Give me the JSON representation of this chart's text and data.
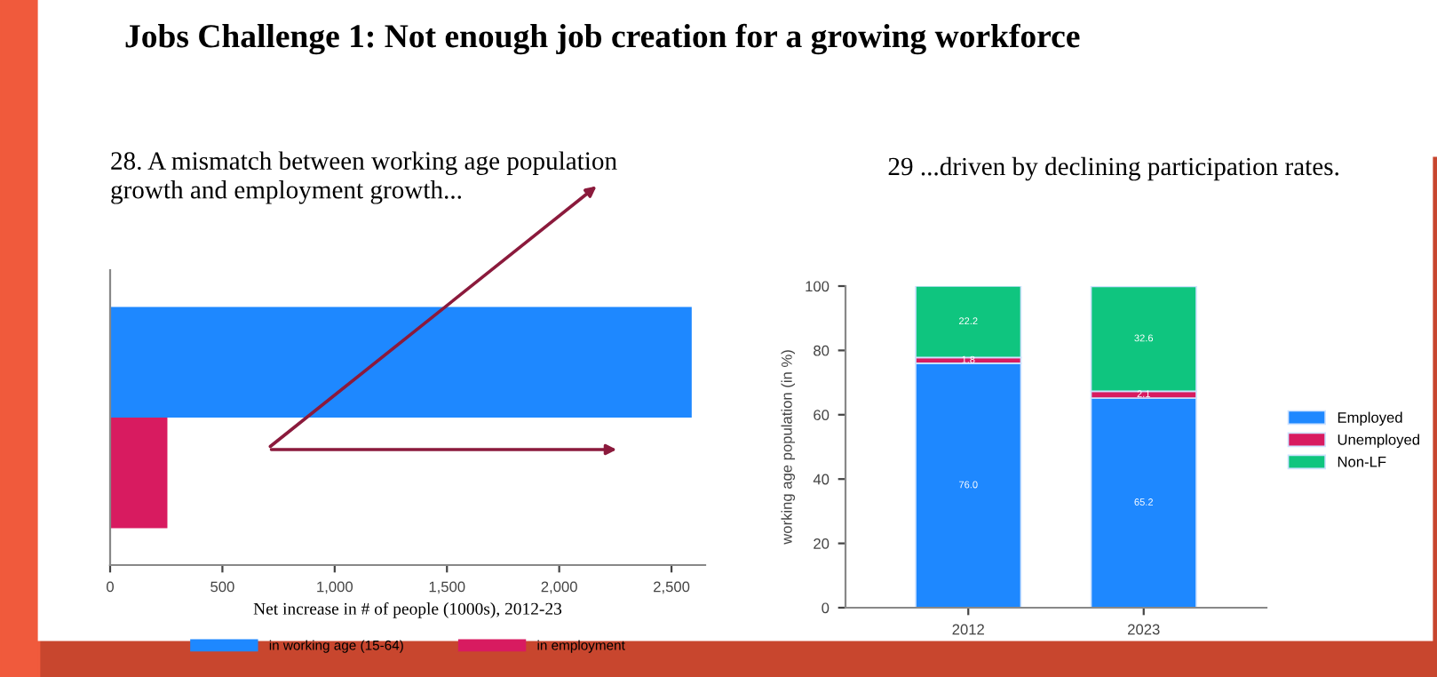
{
  "chart_data": [
    {
      "type": "bar",
      "orientation": "horizontal",
      "title": "Jobs Challenge 1: Not enough job creation for a growing workforce",
      "subtitle": "28. A mismatch between working age population\ngrowth and employment growth...",
      "xlabel": "Net increase in # of people (1000s), 2012-23",
      "categories": [
        null
      ],
      "series": [
        {
          "name": "in working age (15-64)",
          "color": "#1e88ff",
          "values": [
            2590
          ]
        },
        {
          "name": "in employment",
          "color": "#d81b60",
          "values": [
            255
          ]
        }
      ],
      "xlim": [
        0,
        2650
      ],
      "xticks": [
        0,
        {
          "value": 500,
          "label": "500"
        },
        {
          "value": 1000,
          "label": "1,000"
        },
        {
          "value": 1500,
          "label": "1,500"
        },
        {
          "value": 2000,
          "label": "2,000"
        },
        {
          "value": 2500,
          "label": "2,500"
        }
      ],
      "tick_labels": "x",
      "legend": "bottom",
      "grid": false
    },
    {
      "type": "bar",
      "stacked": true,
      "title": "29 ...driven by declining participation rates.",
      "ylabel": "working age population (in %)",
      "categories": [
        "2012",
        "2023"
      ],
      "series": [
        {
          "name": "Employed",
          "color": "#1e88ff",
          "values": [
            76.0,
            65.2
          ],
          "value_labels": [
            "76.0",
            "65.2"
          ]
        },
        {
          "name": "Unemployed",
          "color": "#d81b60",
          "values": [
            1.8,
            2.1
          ],
          "value_labels": [
            "1.8",
            "2.1"
          ]
        },
        {
          "name": "Non-LF",
          "color": "#0fc57f",
          "values": [
            22.2,
            32.6
          ],
          "value_labels": [
            "22.2",
            "32.6"
          ]
        }
      ],
      "ylim": [
        0,
        100
      ],
      "yticks": [
        0,
        20,
        40,
        60,
        80,
        100
      ],
      "legend": "right",
      "grid": false
    }
  ]
}
